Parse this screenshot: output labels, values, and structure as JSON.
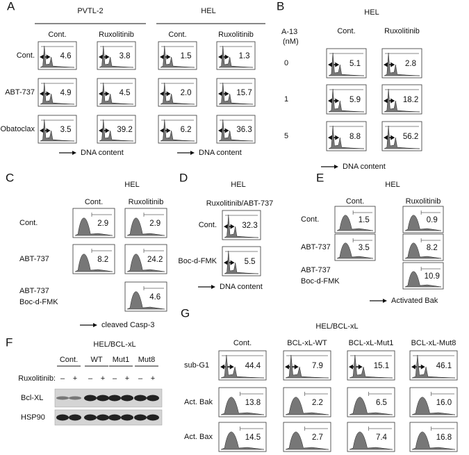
{
  "panel_a": {
    "label": "A",
    "groups": [
      "PVTL-2",
      "HEL"
    ],
    "columns": [
      "Cont.",
      "Ruxolitinib",
      "Cont.",
      "Ruxolitinib"
    ],
    "rows": [
      {
        "label": "Cont.",
        "values": [
          "4.6",
          "3.8",
          "1.5",
          "1.3"
        ]
      },
      {
        "label": "ABT-737",
        "values": [
          "4.9",
          "4.5",
          "2.0",
          "15.7"
        ]
      },
      {
        "label": "Obatoclax",
        "values": [
          "3.5",
          "39.2",
          "6.2",
          "36.3"
        ]
      }
    ],
    "x_labels": [
      "DNA content",
      "DNA content"
    ]
  },
  "panel_b": {
    "label": "B",
    "title": "HEL",
    "row_header": [
      "A-13",
      "(nM)"
    ],
    "columns": [
      "Cont.",
      "Ruxolitinib"
    ],
    "rows": [
      {
        "label": "0",
        "values": [
          "5.1",
          "2.8"
        ]
      },
      {
        "label": "1",
        "values": [
          "5.9",
          "18.2"
        ]
      },
      {
        "label": "5",
        "values": [
          "8.8",
          "56.2"
        ]
      }
    ],
    "x_label": "DNA content"
  },
  "panel_c": {
    "label": "C",
    "title": "HEL",
    "columns": [
      "Cont.",
      "Ruxolitinib"
    ],
    "rows": [
      {
        "label": "Cont.",
        "values": [
          "2.9",
          "2.9"
        ]
      },
      {
        "label": "ABT-737",
        "values": [
          "8.2",
          "24.2"
        ]
      },
      {
        "label": [
          "ABT-737",
          "Boc-d-FMK"
        ],
        "values": [
          null,
          "4.6"
        ]
      }
    ],
    "x_label": "cleaved Casp-3"
  },
  "panel_d": {
    "label": "D",
    "title": "HEL",
    "subtitle": "Ruxolitinib/ABT-737",
    "rows": [
      {
        "label": "Cont.",
        "values": [
          "32.3"
        ]
      },
      {
        "label": "Boc-d-FMK",
        "values": [
          "5.5"
        ]
      }
    ],
    "x_label": "DNA content"
  },
  "panel_e": {
    "label": "E",
    "title": "HEL",
    "columns": [
      "Cont.",
      "Ruxolitinib"
    ],
    "rows": [
      {
        "label": "Cont.",
        "values": [
          "1.5",
          "0.9"
        ]
      },
      {
        "label": "ABT-737",
        "values": [
          "3.5",
          "8.2"
        ]
      },
      {
        "label": [
          "ABT-737",
          "Boc-d-FMK"
        ],
        "values": [
          null,
          "10.9"
        ]
      }
    ],
    "x_label": "Activated Bak"
  },
  "panel_f": {
    "label": "F",
    "title": "HEL/BCL-xL",
    "groups": [
      "Cont.",
      "WT",
      "Mut1",
      "Mut8"
    ],
    "treatment_label": "Ruxolitinib:",
    "signs": [
      "–",
      "+",
      "–",
      "+",
      "–",
      "+",
      "–",
      "+"
    ],
    "bands": [
      "Bcl-XL",
      "HSP90"
    ]
  },
  "panel_g": {
    "label": "G",
    "title": "HEL/BCL-xL",
    "columns": [
      "Cont.",
      "BCL-xL-WT",
      "BCL-xL-Mut1",
      "BCL-xL-Mut8"
    ],
    "rows": [
      {
        "label": "sub-G1",
        "values": [
          "44.4",
          "7.9",
          "15.1",
          "46.1"
        ]
      },
      {
        "label": "Act. Bak",
        "values": [
          "13.8",
          "2.2",
          "6.5",
          "16.0"
        ]
      },
      {
        "label": "Act. Bax",
        "values": [
          "14.5",
          "2.7",
          "7.4",
          "16.8"
        ]
      }
    ]
  }
}
